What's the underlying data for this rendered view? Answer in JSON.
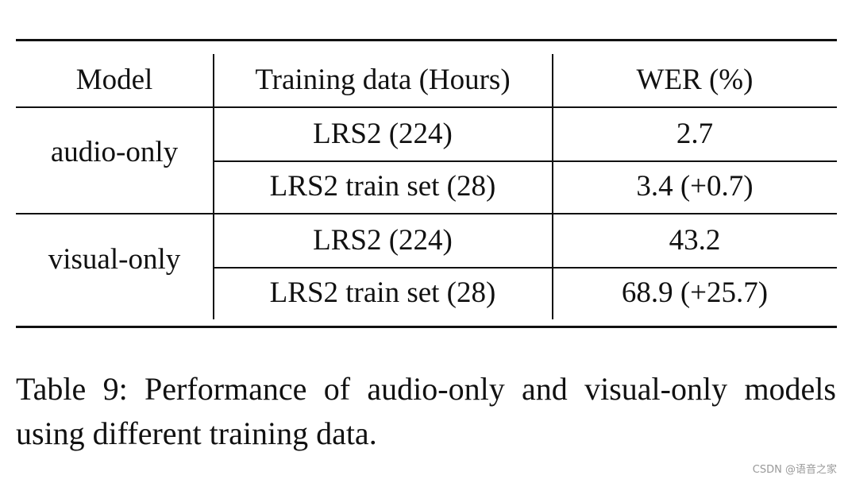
{
  "table": {
    "headers": [
      "Model",
      "Training data (Hours)",
      "WER (%)"
    ],
    "groups": [
      {
        "model": "audio-only",
        "rows": [
          {
            "data": "LRS2 (224)",
            "wer": "2.7"
          },
          {
            "data": "LRS2 train set (28)",
            "wer": "3.4 (+0.7)"
          }
        ]
      },
      {
        "model": "visual-only",
        "rows": [
          {
            "data": "LRS2 (224)",
            "wer": "43.2"
          },
          {
            "data": "LRS2 train set (28)",
            "wer": "68.9 (+25.7)"
          }
        ]
      }
    ]
  },
  "caption": "Table 9:  Performance of audio-only and visual-only models using different training data.",
  "watermark": "CSDN @语音之家"
}
